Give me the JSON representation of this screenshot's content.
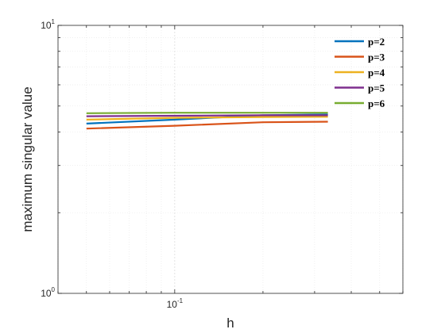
{
  "chart_data": {
    "type": "line",
    "xlabel": "h",
    "ylabel": "maximum singular value",
    "x_scale": "log",
    "y_scale": "log",
    "xlim": [
      0.04,
      0.6
    ],
    "ylim": [
      1,
      10
    ],
    "grid": "on",
    "legend_placement": "top-right",
    "x_ticks": [
      {
        "base": "10",
        "exp": "-1"
      }
    ],
    "y_ticks": [
      {
        "base": "10",
        "exp": "0"
      },
      {
        "base": "10",
        "exp": "1"
      }
    ],
    "x": [
      0.05,
      0.1,
      0.2,
      0.333
    ],
    "series": [
      {
        "name": "p=2",
        "color": "#0072BD",
        "values": [
          4.3,
          4.45,
          4.62,
          4.65
        ]
      },
      {
        "name": "p=3",
        "color": "#D95319",
        "values": [
          4.12,
          4.22,
          4.35,
          4.37
        ]
      },
      {
        "name": "p=4",
        "color": "#EDB120",
        "values": [
          4.45,
          4.52,
          4.55,
          4.56
        ]
      },
      {
        "name": "p=5",
        "color": "#7E2F8E",
        "values": [
          4.58,
          4.6,
          4.62,
          4.62
        ]
      },
      {
        "name": "p=6",
        "color": "#77AC30",
        "values": [
          4.7,
          4.72,
          4.72,
          4.72
        ]
      }
    ]
  }
}
